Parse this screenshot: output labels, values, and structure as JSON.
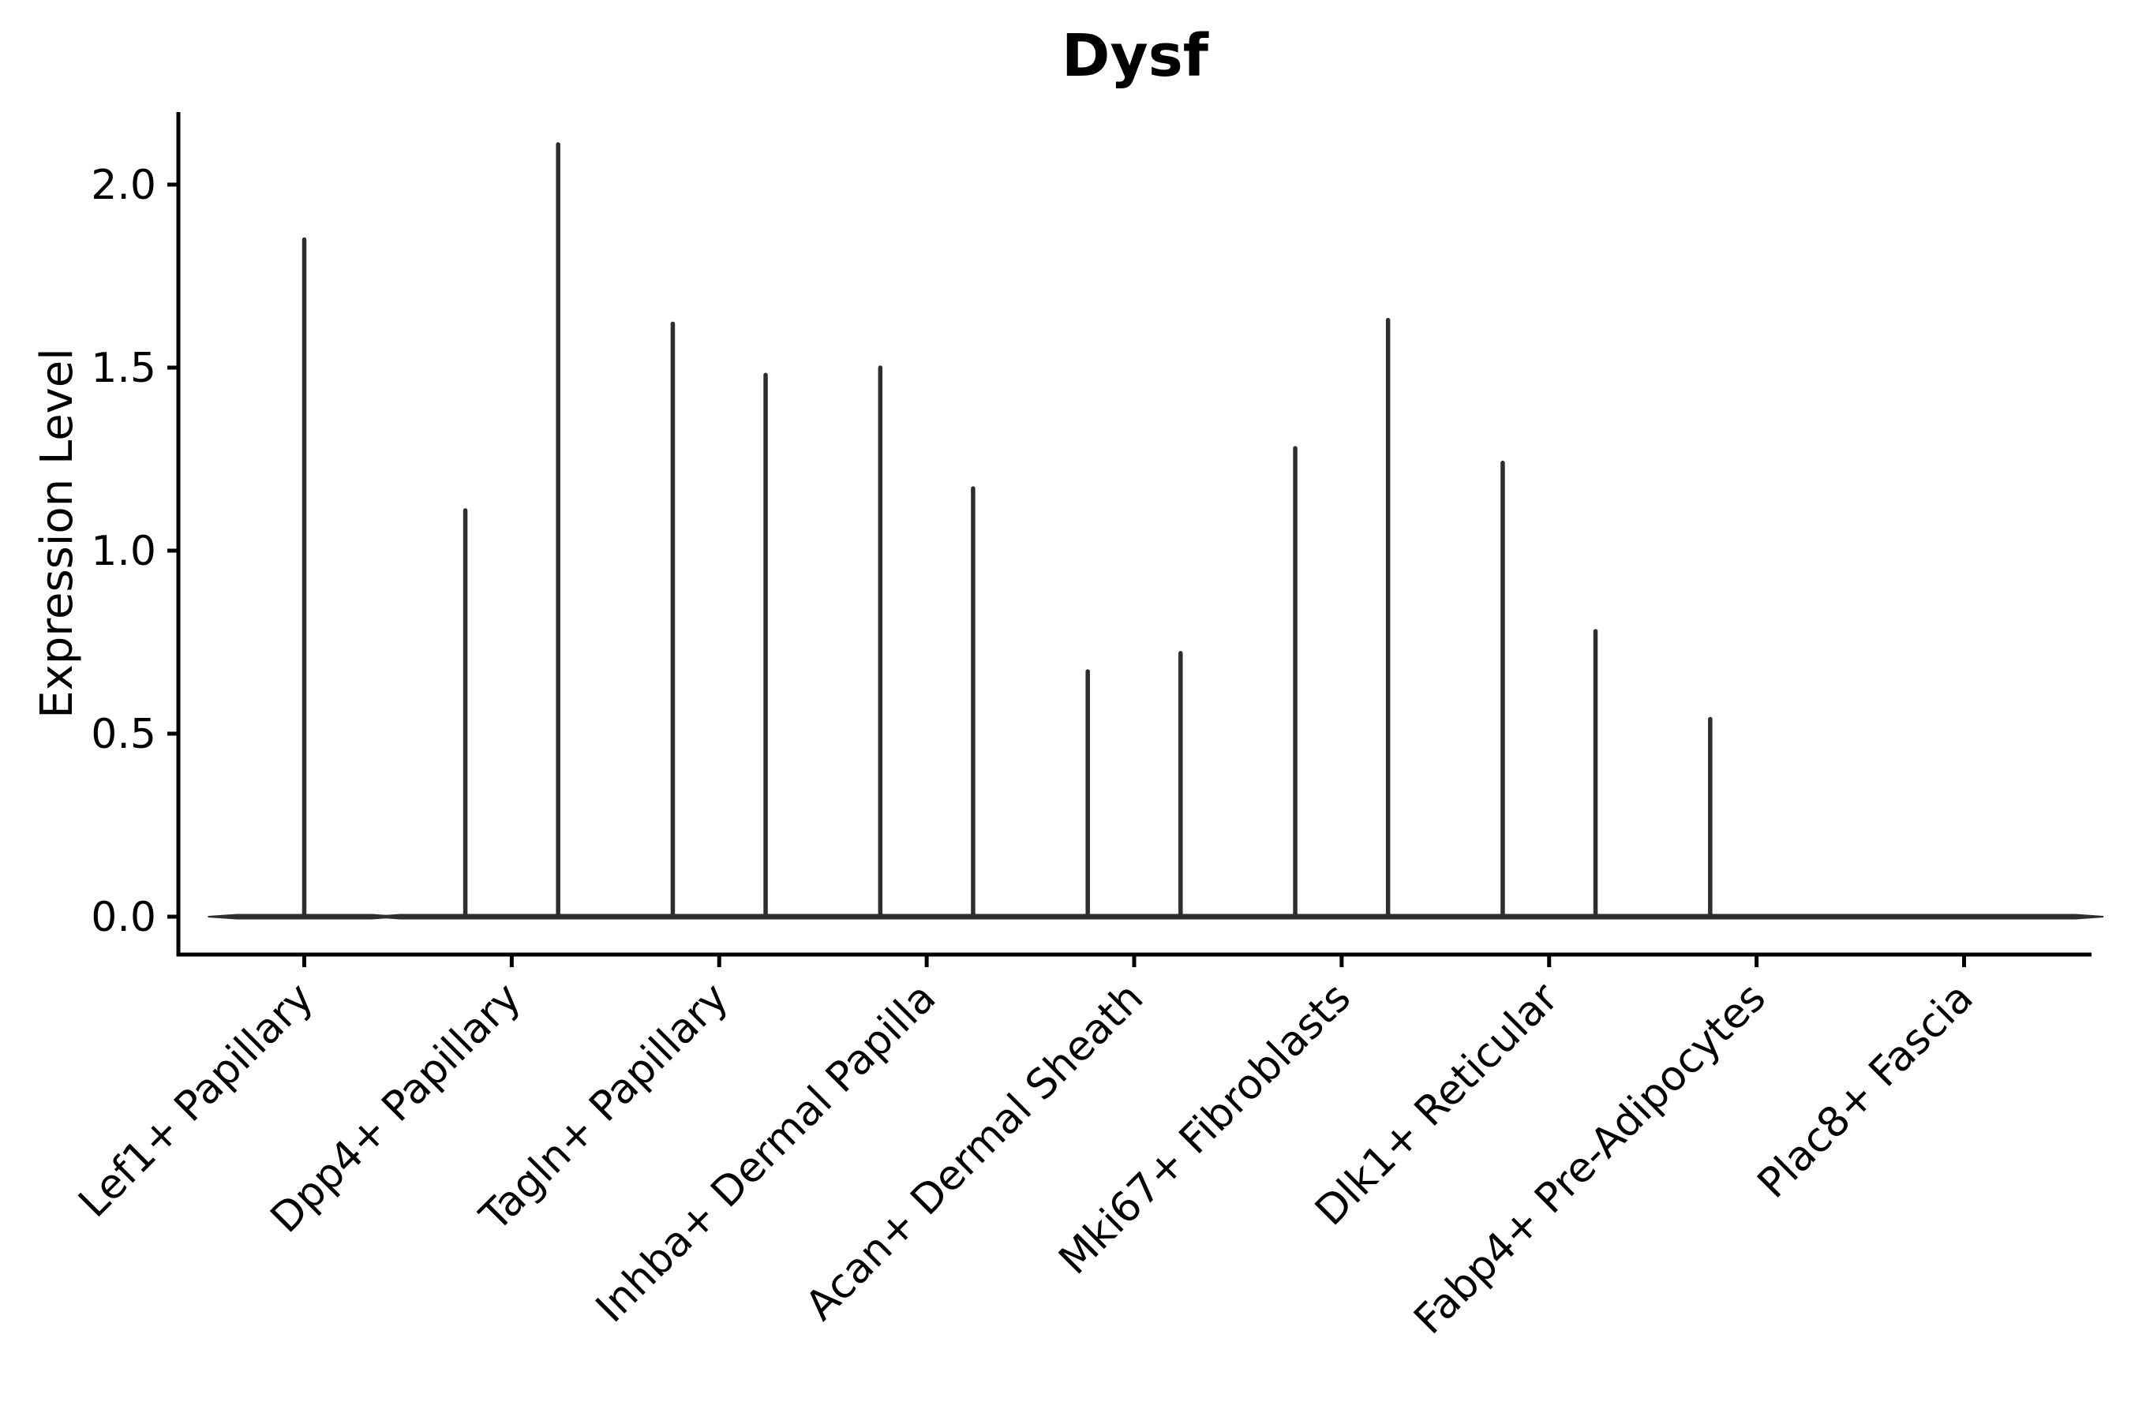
{
  "title": "Dysf",
  "colors": {
    "violin": "#2e2e2e",
    "axis": "#000000",
    "text": "#000000",
    "background": "#ffffff"
  },
  "chart_data": {
    "type": "violin",
    "title": "Dysf",
    "xlabel": "",
    "ylabel": "Expression Level",
    "ylim": [
      -0.1,
      2.2
    ],
    "yticks": [
      0.0,
      0.5,
      1.0,
      1.5,
      2.0
    ],
    "ytick_labels": [
      "0.0",
      "0.5",
      "1.0",
      "1.5",
      "2.0"
    ],
    "grid": false,
    "legend": "none",
    "x_tick_rotation_degrees": 45,
    "categories": [
      "Lef1+ Papillary",
      "Dpp4+ Papillary",
      "Tagln+ Papillary",
      "Inhba+ Dermal Papilla",
      "Acan+ Dermal Sheath",
      "Mki67+ Fibroblasts",
      "Dlk1+ Reticular",
      "Fabp4+ Pre-Adipocytes",
      "Plac8+ Fascia"
    ],
    "description": "Very thin violins: each violin collapses to a flat bar at expression 0 with a single thin spike rising to its maximum expression value. Most categories contain two side-by-side (dodged) violins; Lef1+ Papillary has one centered violin; Plac8+ Fascia is flat at 0.",
    "violins": [
      {
        "category": "Lef1+ Papillary",
        "groups": [
          {
            "position": "center",
            "max": 1.85
          }
        ]
      },
      {
        "category": "Dpp4+ Papillary",
        "groups": [
          {
            "position": "left",
            "max": 1.11
          },
          {
            "position": "right",
            "max": 2.11
          }
        ]
      },
      {
        "category": "Tagln+ Papillary",
        "groups": [
          {
            "position": "left",
            "max": 1.62
          },
          {
            "position": "right",
            "max": 1.48
          }
        ]
      },
      {
        "category": "Inhba+ Dermal Papilla",
        "groups": [
          {
            "position": "left",
            "max": 1.5
          },
          {
            "position": "right",
            "max": 1.17
          }
        ]
      },
      {
        "category": "Acan+ Dermal Sheath",
        "groups": [
          {
            "position": "left",
            "max": 0.67
          },
          {
            "position": "right",
            "max": 0.72
          }
        ]
      },
      {
        "category": "Mki67+ Fibroblasts",
        "groups": [
          {
            "position": "left",
            "max": 1.28
          },
          {
            "position": "right",
            "max": 1.63
          }
        ]
      },
      {
        "category": "Dlk1+ Reticular",
        "groups": [
          {
            "position": "left",
            "max": 1.24
          },
          {
            "position": "right",
            "max": 0.78
          }
        ]
      },
      {
        "category": "Fabp4+ Pre-Adipocytes",
        "groups": [
          {
            "position": "left",
            "max": 0.54
          },
          {
            "position": "right",
            "max": 0.0
          }
        ]
      },
      {
        "category": "Plac8+ Fascia",
        "groups": [
          {
            "position": "left",
            "max": 0.0
          },
          {
            "position": "right",
            "max": 0.0
          }
        ]
      }
    ],
    "baseline_value": 0.0
  }
}
